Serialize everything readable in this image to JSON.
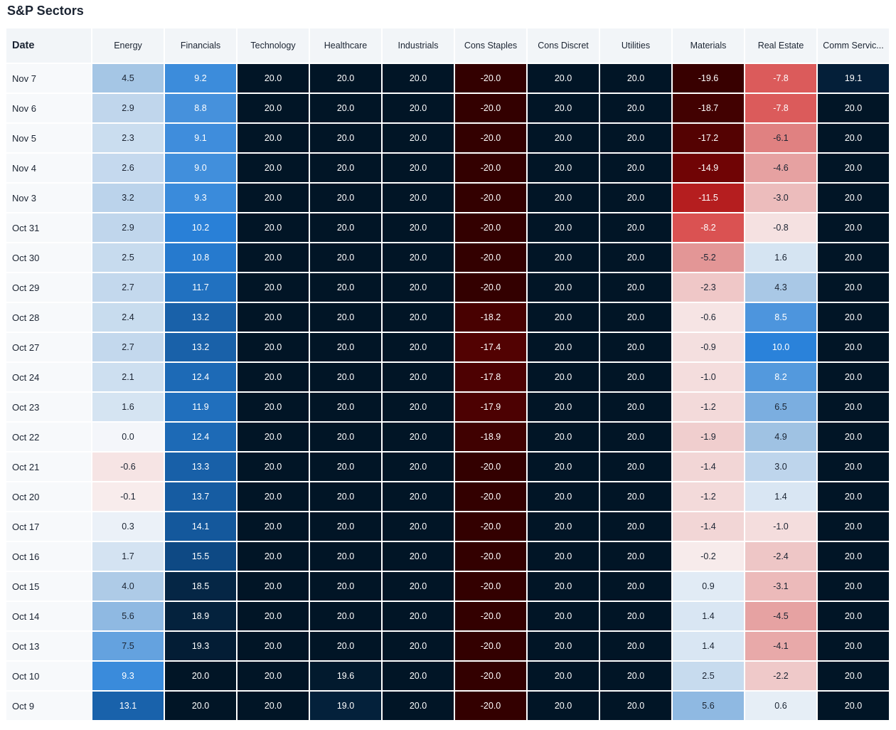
{
  "page": {
    "title": "S&P Sectors"
  },
  "chart_data": {
    "type": "heatmap",
    "title": "S&P Sectors",
    "row_header": "Date",
    "columns": [
      "Energy",
      "Financials",
      "Technology",
      "Healthcare",
      "Industrials",
      "Cons Staples",
      "Cons Discret",
      "Utilities",
      "Materials",
      "Real Estate",
      "Comm Servic..."
    ],
    "rows": [
      {
        "date": "Nov 7",
        "values": [
          4.5,
          9.2,
          20.0,
          20.0,
          20.0,
          -20.0,
          20.0,
          20.0,
          -19.6,
          -7.8,
          19.1
        ]
      },
      {
        "date": "Nov 6",
        "values": [
          2.9,
          8.8,
          20.0,
          20.0,
          20.0,
          -20.0,
          20.0,
          20.0,
          -18.7,
          -7.8,
          20.0
        ]
      },
      {
        "date": "Nov 5",
        "values": [
          2.3,
          9.1,
          20.0,
          20.0,
          20.0,
          -20.0,
          20.0,
          20.0,
          -17.2,
          -6.1,
          20.0
        ]
      },
      {
        "date": "Nov 4",
        "values": [
          2.6,
          9.0,
          20.0,
          20.0,
          20.0,
          -20.0,
          20.0,
          20.0,
          -14.9,
          -4.6,
          20.0
        ]
      },
      {
        "date": "Nov 3",
        "values": [
          3.2,
          9.3,
          20.0,
          20.0,
          20.0,
          -20.0,
          20.0,
          20.0,
          -11.5,
          -3.0,
          20.0
        ]
      },
      {
        "date": "Oct 31",
        "values": [
          2.9,
          10.2,
          20.0,
          20.0,
          20.0,
          -20.0,
          20.0,
          20.0,
          -8.2,
          -0.8,
          20.0
        ]
      },
      {
        "date": "Oct 30",
        "values": [
          2.5,
          10.8,
          20.0,
          20.0,
          20.0,
          -20.0,
          20.0,
          20.0,
          -5.2,
          1.6,
          20.0
        ]
      },
      {
        "date": "Oct 29",
        "values": [
          2.7,
          11.7,
          20.0,
          20.0,
          20.0,
          -20.0,
          20.0,
          20.0,
          -2.3,
          4.3,
          20.0
        ]
      },
      {
        "date": "Oct 28",
        "values": [
          2.4,
          13.2,
          20.0,
          20.0,
          20.0,
          -18.2,
          20.0,
          20.0,
          -0.6,
          8.5,
          20.0
        ]
      },
      {
        "date": "Oct 27",
        "values": [
          2.7,
          13.2,
          20.0,
          20.0,
          20.0,
          -17.4,
          20.0,
          20.0,
          -0.9,
          10.0,
          20.0
        ]
      },
      {
        "date": "Oct 24",
        "values": [
          2.1,
          12.4,
          20.0,
          20.0,
          20.0,
          -17.8,
          20.0,
          20.0,
          -1.0,
          8.2,
          20.0
        ]
      },
      {
        "date": "Oct 23",
        "values": [
          1.6,
          11.9,
          20.0,
          20.0,
          20.0,
          -17.9,
          20.0,
          20.0,
          -1.2,
          6.5,
          20.0
        ]
      },
      {
        "date": "Oct 22",
        "values": [
          0.0,
          12.4,
          20.0,
          20.0,
          20.0,
          -18.9,
          20.0,
          20.0,
          -1.9,
          4.9,
          20.0
        ]
      },
      {
        "date": "Oct 21",
        "values": [
          -0.6,
          13.3,
          20.0,
          20.0,
          20.0,
          -20.0,
          20.0,
          20.0,
          -1.4,
          3.0,
          20.0
        ]
      },
      {
        "date": "Oct 20",
        "values": [
          -0.1,
          13.7,
          20.0,
          20.0,
          20.0,
          -20.0,
          20.0,
          20.0,
          -1.2,
          1.4,
          20.0
        ]
      },
      {
        "date": "Oct 17",
        "values": [
          0.3,
          14.1,
          20.0,
          20.0,
          20.0,
          -20.0,
          20.0,
          20.0,
          -1.4,
          -1.0,
          20.0
        ]
      },
      {
        "date": "Oct 16",
        "values": [
          1.7,
          15.5,
          20.0,
          20.0,
          20.0,
          -20.0,
          20.0,
          20.0,
          -0.2,
          -2.4,
          20.0
        ]
      },
      {
        "date": "Oct 15",
        "values": [
          4.0,
          18.5,
          20.0,
          20.0,
          20.0,
          -20.0,
          20.0,
          20.0,
          0.9,
          -3.1,
          20.0
        ]
      },
      {
        "date": "Oct 14",
        "values": [
          5.6,
          18.9,
          20.0,
          20.0,
          20.0,
          -20.0,
          20.0,
          20.0,
          1.4,
          -4.5,
          20.0
        ]
      },
      {
        "date": "Oct 13",
        "values": [
          7.5,
          19.3,
          20.0,
          20.0,
          20.0,
          -20.0,
          20.0,
          20.0,
          1.4,
          -4.1,
          20.0
        ]
      },
      {
        "date": "Oct 10",
        "values": [
          9.3,
          20.0,
          20.0,
          19.6,
          20.0,
          -20.0,
          20.0,
          20.0,
          2.5,
          -2.2,
          20.0
        ]
      },
      {
        "date": "Oct 9",
        "values": [
          13.1,
          20.0,
          20.0,
          19.0,
          20.0,
          -20.0,
          20.0,
          20.0,
          5.6,
          0.6,
          20.0
        ]
      }
    ],
    "value_range": [
      -20,
      20
    ],
    "color_scale": {
      "negative_stops": [
        "#f8eeee",
        "#e49a9a",
        "#d42a2a",
        "#6e0304",
        "#330000"
      ],
      "zero": "#f4f6fa",
      "positive_stops": [
        "#f0f4f9",
        "#9dc1e3",
        "#2a82da",
        "#0f4f8e",
        "#011526"
      ]
    }
  }
}
